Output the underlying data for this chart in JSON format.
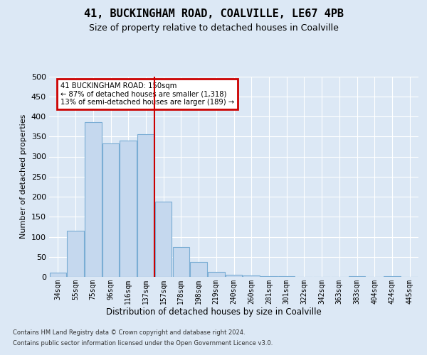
{
  "title": "41, BUCKINGHAM ROAD, COALVILLE, LE67 4PB",
  "subtitle": "Size of property relative to detached houses in Coalville",
  "xlabel": "Distribution of detached houses by size in Coalville",
  "ylabel": "Number of detached properties",
  "footnote1": "Contains HM Land Registry data © Crown copyright and database right 2024.",
  "footnote2": "Contains public sector information licensed under the Open Government Licence v3.0.",
  "categories": [
    "34sqm",
    "55sqm",
    "75sqm",
    "96sqm",
    "116sqm",
    "137sqm",
    "157sqm",
    "178sqm",
    "198sqm",
    "219sqm",
    "240sqm",
    "260sqm",
    "281sqm",
    "301sqm",
    "322sqm",
    "342sqm",
    "363sqm",
    "383sqm",
    "404sqm",
    "424sqm",
    "445sqm"
  ],
  "values": [
    10,
    115,
    385,
    333,
    340,
    355,
    187,
    75,
    37,
    12,
    5,
    3,
    1,
    1,
    0,
    0,
    0,
    2,
    0,
    1,
    0
  ],
  "bar_color": "#c5d8ee",
  "bar_edge_color": "#7aadd4",
  "red_line_x": 6.0,
  "red_line_label": "41 BUCKINGHAM ROAD: 150sqm",
  "annotation_line2": "← 87% of detached houses are smaller (1,318)",
  "annotation_line3": "13% of semi-detached houses are larger (189) →",
  "annotation_box_color": "#cc0000",
  "ylim": [
    0,
    500
  ],
  "yticks": [
    0,
    50,
    100,
    150,
    200,
    250,
    300,
    350,
    400,
    450,
    500
  ],
  "bg_color": "#dce8f5",
  "plot_bg_color": "#dce8f5",
  "grid_color": "#ffffff",
  "title_fontsize": 11,
  "subtitle_fontsize": 9
}
